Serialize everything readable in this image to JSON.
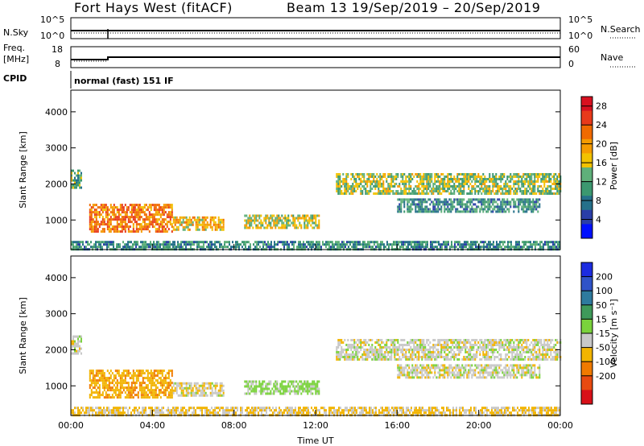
{
  "header": {
    "title": "Fort Hays West (fitACF)",
    "subtitle": "Beam 13  19/Sep/2019 – 20/Sep/2019"
  },
  "meta_panels": {
    "nsky_label": "N.Sky",
    "nsky_ticks": [
      "10^5",
      "10^0"
    ],
    "nsearch_label": "N.Search",
    "nsearch_ticks": [
      "10^5",
      "10^0"
    ],
    "freq_label_line1": "Freq.",
    "freq_label_line2": "[MHz]",
    "freq_ticks": [
      "18",
      "8"
    ],
    "nave_label": "Nave",
    "nave_ticks": [
      "60",
      "0"
    ],
    "cpid_label": "CPID",
    "cpid_text": "normal (fast) 151 IF"
  },
  "colors": {
    "power_scale": [
      "#0010ff",
      "#2a3ea8",
      "#25708a",
      "#3c9870",
      "#5fb07a",
      "#f2c200",
      "#f59b00",
      "#f06a00",
      "#e83a1a",
      "#d81020"
    ],
    "velocity_scale": [
      "#1c2ce0",
      "#2f53c8",
      "#2e7a9e",
      "#3f9a5a",
      "#7ad23c",
      "#c8c8c8",
      "#f2b400",
      "#f07a00",
      "#e84a10",
      "#d81018"
    ]
  },
  "chart_data": [
    {
      "type": "heatmap",
      "name": "power",
      "x_range": [
        "00:00",
        "24:00"
      ],
      "x_ticks": [
        "00:00",
        "04:00",
        "08:00",
        "12:00",
        "16:00",
        "20:00",
        "00:00"
      ],
      "ylabel": "Slant Range [km]",
      "ylim": [
        180,
        4600
      ],
      "y_ticks": [
        1000,
        2000,
        3000,
        4000
      ],
      "colorbar_label": "Power [dB]",
      "colorbar_ticks": [
        28,
        24,
        20,
        16,
        12,
        8,
        4
      ],
      "colorbar_range": [
        0,
        30
      ],
      "regions": [
        {
          "t0": 0.0,
          "t1": 0.5,
          "r0": 1900,
          "r1": 2400,
          "level": 12
        },
        {
          "t0": 0.9,
          "t1": 5.0,
          "r0": 700,
          "r1": 1450,
          "level": 22
        },
        {
          "t0": 5.0,
          "t1": 7.5,
          "r0": 700,
          "r1": 1100,
          "level": 18
        },
        {
          "t0": 8.5,
          "t1": 12.2,
          "r0": 750,
          "r1": 1150,
          "level": 16
        },
        {
          "t0": 13.0,
          "t1": 24.0,
          "r0": 1700,
          "r1": 2300,
          "level": 14
        },
        {
          "t0": 16.0,
          "t1": 23.0,
          "r0": 1200,
          "r1": 1600,
          "level": 10
        },
        {
          "t0": 0.0,
          "t1": 24.0,
          "r0": 200,
          "r1": 420,
          "level": 10
        }
      ]
    },
    {
      "type": "heatmap",
      "name": "velocity",
      "x_range": [
        "00:00",
        "24:00"
      ],
      "x_ticks": [
        "00:00",
        "04:00",
        "08:00",
        "12:00",
        "16:00",
        "20:00",
        "00:00"
      ],
      "xlabel": "Time UT",
      "ylabel": "Slant Range [km]",
      "ylim": [
        180,
        4600
      ],
      "y_ticks": [
        1000,
        2000,
        3000,
        4000
      ],
      "colorbar_label": "Velocity [m s⁻¹]",
      "colorbar_ticks": [
        200,
        100,
        50,
        15,
        -15,
        -50,
        -100,
        -200
      ],
      "regions": [
        {
          "t0": 0.0,
          "t1": 0.5,
          "r0": 1900,
          "r1": 2400,
          "level": 0
        },
        {
          "t0": 0.9,
          "t1": 5.0,
          "r0": 700,
          "r1": 1450,
          "level": -40
        },
        {
          "t0": 5.0,
          "t1": 7.5,
          "r0": 700,
          "r1": 1100,
          "level": -5
        },
        {
          "t0": 8.5,
          "t1": 12.2,
          "r0": 750,
          "r1": 1150,
          "level": 25
        },
        {
          "t0": 13.0,
          "t1": 24.0,
          "r0": 1700,
          "r1": 2300,
          "level": 0
        },
        {
          "t0": 16.0,
          "t1": 23.0,
          "r0": 1200,
          "r1": 1600,
          "level": 0
        },
        {
          "t0": 0.0,
          "t1": 24.0,
          "r0": 200,
          "r1": 420,
          "level": -20
        }
      ]
    }
  ]
}
